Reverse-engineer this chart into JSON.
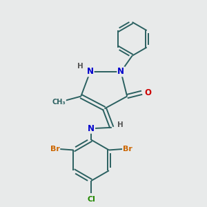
{
  "background_color": "#e8eaea",
  "bond_color": "#2a6060",
  "N_color": "#0000cc",
  "O_color": "#cc0000",
  "Br_color": "#cc6600",
  "Cl_color": "#228800",
  "H_color": "#555555",
  "figsize": [
    3.0,
    3.0
  ],
  "dpi": 100,
  "xlim": [
    0,
    10
  ],
  "ylim": [
    0,
    10
  ]
}
